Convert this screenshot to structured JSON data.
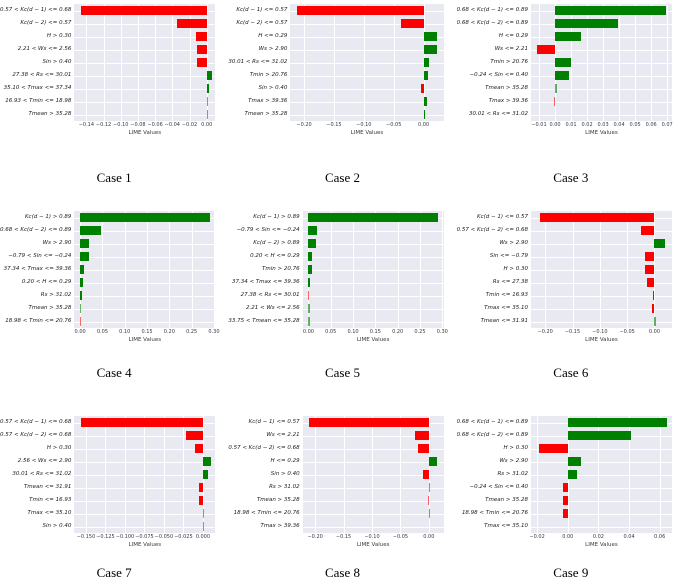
{
  "figure": {
    "xlabel": "LIME Values",
    "colors": {
      "positive_bar": "#008000",
      "negative_bar": "#fe0000",
      "plot_background": "#e9e9f1",
      "gridline": "#ffffff",
      "tick_text": "#3a3a3a",
      "label_text": "#1a1a1a"
    }
  },
  "chart_data": [
    {
      "type": "bar",
      "orientation": "horizontal",
      "title": "Case 1",
      "xlabel": "LIME Values",
      "legend": "none",
      "grid": true,
      "categories": [
        "0.57 < Kc(d − 1) <= 0.68",
        "Kc(d − 2) <= 0.57",
        "H > 0.30",
        "2.21 < Ws <= 2.56",
        "Sin > 0.40",
        "27.38 < Rs <= 30.01",
        "35.10 < Tmax <= 37.34",
        "16.93 < Tmin <= 18.98",
        "Tmean > 35.28"
      ],
      "values": [
        -0.146,
        -0.034,
        -0.013,
        -0.011,
        -0.011,
        0.006,
        0.003,
        0.001,
        0.0005
      ],
      "xticks": [
        -0.14,
        -0.12,
        -0.1,
        -0.08,
        -0.06,
        -0.04,
        -0.02,
        0.0
      ],
      "xtick_labels": [
        "−0.14",
        "−0.12",
        "−0.10",
        "−0.08",
        "−0.06",
        "−0.04",
        "−0.02",
        "0.00"
      ],
      "xlim": [
        -0.154,
        0.01
      ]
    },
    {
      "type": "bar",
      "orientation": "horizontal",
      "title": "Case 2",
      "xlabel": "LIME Values",
      "legend": "none",
      "grid": true,
      "categories": [
        "Kc(d − 1) <= 0.57",
        "Kc(d − 2) <= 0.57",
        "H <= 0.29",
        "Ws > 2.90",
        "30.01 < Rs <= 31.02",
        "Tmin > 20.76",
        "Sin > 0.40",
        "Tmax > 39.36",
        "Tmean > 35.28"
      ],
      "values": [
        -0.212,
        -0.038,
        0.023,
        0.023,
        0.009,
        0.008,
        -0.005,
        0.005,
        0.003
      ],
      "xticks": [
        -0.2,
        -0.15,
        -0.1,
        -0.05,
        0.0
      ],
      "xtick_labels": [
        "−0.20",
        "−0.15",
        "−0.10",
        "−0.05",
        "0.00"
      ],
      "xlim": [
        -0.223,
        0.033
      ]
    },
    {
      "type": "bar",
      "orientation": "horizontal",
      "title": "Case 3",
      "xlabel": "LIME Values",
      "legend": "none",
      "grid": true,
      "categories": [
        "0.68 < Kc(d − 1) <= 0.89",
        "0.68 < Kc(d − 2) <= 0.89",
        "H <= 0.29",
        "Ws <= 2.21",
        "Tmin > 20.76",
        "−0.24 < Sin <= 0.40",
        "Tmean > 35.28",
        "Tmax > 39.36",
        "30.01 < Rs <= 31.02"
      ],
      "values": [
        0.069,
        0.039,
        0.016,
        -0.011,
        0.01,
        0.0085,
        0.0015,
        -0.0005,
        0.0
      ],
      "xticks": [
        -0.01,
        0.0,
        0.01,
        0.02,
        0.03,
        0.04,
        0.05,
        0.06,
        0.07
      ],
      "xtick_labels": [
        "−0.01",
        "0.00",
        "0.01",
        "0.02",
        "0.03",
        "0.04",
        "0.05",
        "0.06",
        "0.07"
      ],
      "xlim": [
        -0.015,
        0.073
      ]
    },
    {
      "type": "bar",
      "orientation": "horizontal",
      "title": "Case 4",
      "xlabel": "LIME Values",
      "legend": "none",
      "grid": true,
      "categories": [
        "Kc(d − 1) > 0.89",
        "0.68 < Kc(d − 2) <= 0.89",
        "Ws > 2.90",
        "−0.79 < Sin <= −0.24",
        "37.34 < Tmax <= 39.36",
        "0.20 < H <= 0.29",
        "Rs > 31.02",
        "Tmean > 35.28",
        "18.98 < Tmin <= 20.76"
      ],
      "values": [
        0.29,
        0.047,
        0.02,
        0.019,
        0.008,
        0.007,
        0.005,
        0.002,
        -0.001
      ],
      "xticks": [
        0.0,
        0.05,
        0.1,
        0.15,
        0.2,
        0.25,
        0.3
      ],
      "xtick_labels": [
        "0.00",
        "0.05",
        "0.10",
        "0.15",
        "0.20",
        "0.25",
        "0.30"
      ],
      "xlim": [
        -0.013,
        0.303
      ]
    },
    {
      "type": "bar",
      "orientation": "horizontal",
      "title": "Case 5",
      "xlabel": "LIME Values",
      "legend": "none",
      "grid": true,
      "categories": [
        "Kc(d − 1) > 0.89",
        "−0.79 < Sin <= −0.24",
        "Kc(d − 2) > 0.89",
        "0.20 < H <= 0.29",
        "Tmin > 20.76",
        "37.34 < Tmax <= 39.36",
        "27.38 < Rs <= 30.01",
        "2.21 < Ws <= 2.56",
        "33.75 < Tmean <= 35.28"
      ],
      "values": [
        0.291,
        0.02,
        0.018,
        0.009,
        0.007,
        0.003,
        -0.002,
        0.001,
        0.001
      ],
      "xticks": [
        0.0,
        0.05,
        0.1,
        0.15,
        0.2,
        0.25,
        0.3
      ],
      "xtick_labels": [
        "0.00",
        "0.05",
        "0.10",
        "0.15",
        "0.20",
        "0.25",
        "0.30"
      ],
      "xlim": [
        -0.013,
        0.303
      ]
    },
    {
      "type": "bar",
      "orientation": "horizontal",
      "title": "Case 6",
      "xlabel": "LIME Values",
      "legend": "none",
      "grid": true,
      "categories": [
        "Kc(d − 1) <= 0.57",
        "0.57 < Kc(d − 2) <= 0.68",
        "Ws > 2.90",
        "Sin <= −0.79",
        "H > 0.30",
        "Rs <= 27.38",
        "Tmin <= 16.93",
        "Tmax <= 35.10",
        "Tmean <= 31.91"
      ],
      "values": [
        -0.209,
        -0.025,
        0.019,
        -0.017,
        -0.017,
        -0.013,
        -0.003,
        -0.004,
        0.002
      ],
      "xticks": [
        -0.2,
        -0.15,
        -0.1,
        -0.05,
        0.0
      ],
      "xtick_labels": [
        "−0.20",
        "−0.15",
        "−0.10",
        "−0.05",
        "0.00"
      ],
      "xlim": [
        -0.226,
        0.032
      ]
    },
    {
      "type": "bar",
      "orientation": "horizontal",
      "title": "Case 7",
      "xlabel": "LIME Values",
      "legend": "none",
      "grid": true,
      "categories": [
        "0.57 < Kc(d − 1) <= 0.68",
        "0.57 < Kc(d − 2) <= 0.68",
        "H > 0.30",
        "2.56 < Ws <= 2.90",
        "30.01 < Rs <= 31.02",
        "Tmean <= 31.91",
        "Tmin <= 16.93",
        "Tmax <= 35.10",
        "Sin > 0.40"
      ],
      "values": [
        -0.157,
        -0.022,
        -0.01,
        0.01,
        0.007,
        -0.005,
        -0.005,
        0.002,
        0.002
      ],
      "xticks": [
        -0.15,
        -0.125,
        -0.1,
        -0.075,
        -0.05,
        -0.025,
        0.0
      ],
      "xtick_labels": [
        "−0.150",
        "−0.125",
        "−0.100",
        "−0.075",
        "−0.050",
        "−0.025",
        "0.000"
      ],
      "xlim": [
        -0.165,
        0.016
      ]
    },
    {
      "type": "bar",
      "orientation": "horizontal",
      "title": "Case 8",
      "xlabel": "LIME Values",
      "legend": "none",
      "grid": true,
      "categories": [
        "Kc(d − 1) <= 0.57",
        "Ws <= 2.21",
        "0.57 < Kc(d − 2) <= 0.68",
        "H <= 0.29",
        "Sin > 0.40",
        "Rs > 31.02",
        "Tmean > 35.28",
        "18.98 < Tmin <= 20.76",
        "Tmax > 39.36"
      ],
      "values": [
        -0.211,
        -0.024,
        -0.02,
        0.015,
        -0.01,
        0.002,
        -0.001,
        0.001,
        0.0
      ],
      "xticks": [
        -0.2,
        -0.15,
        -0.1,
        -0.05,
        0.0
      ],
      "xtick_labels": [
        "−0.20",
        "−0.15",
        "−0.10",
        "−0.05",
        "0.00"
      ],
      "xlim": [
        -0.222,
        0.026
      ]
    },
    {
      "type": "bar",
      "orientation": "horizontal",
      "title": "Case 9",
      "xlabel": "LIME Values",
      "legend": "none",
      "grid": true,
      "categories": [
        "0.68 < Kc(d − 1) <= 0.89",
        "0.68 < Kc(d − 2) <= 0.89",
        "H > 0.30",
        "Ws > 2.90",
        "Rs > 31.02",
        "−0.24 < Sin <= 0.40",
        "Tmean > 35.28",
        "18.98 < Tmin <= 20.76",
        "Tmax <= 35.10"
      ],
      "values": [
        0.065,
        0.041,
        -0.019,
        0.0085,
        0.006,
        -0.003,
        -0.003,
        -0.003,
        0.0
      ],
      "xticks": [
        -0.02,
        0.0,
        0.02,
        0.04,
        0.06
      ],
      "xtick_labels": [
        "−0.02",
        "0.00",
        "0.02",
        "0.04",
        "0.06"
      ],
      "xlim": [
        -0.024,
        0.068
      ]
    }
  ]
}
